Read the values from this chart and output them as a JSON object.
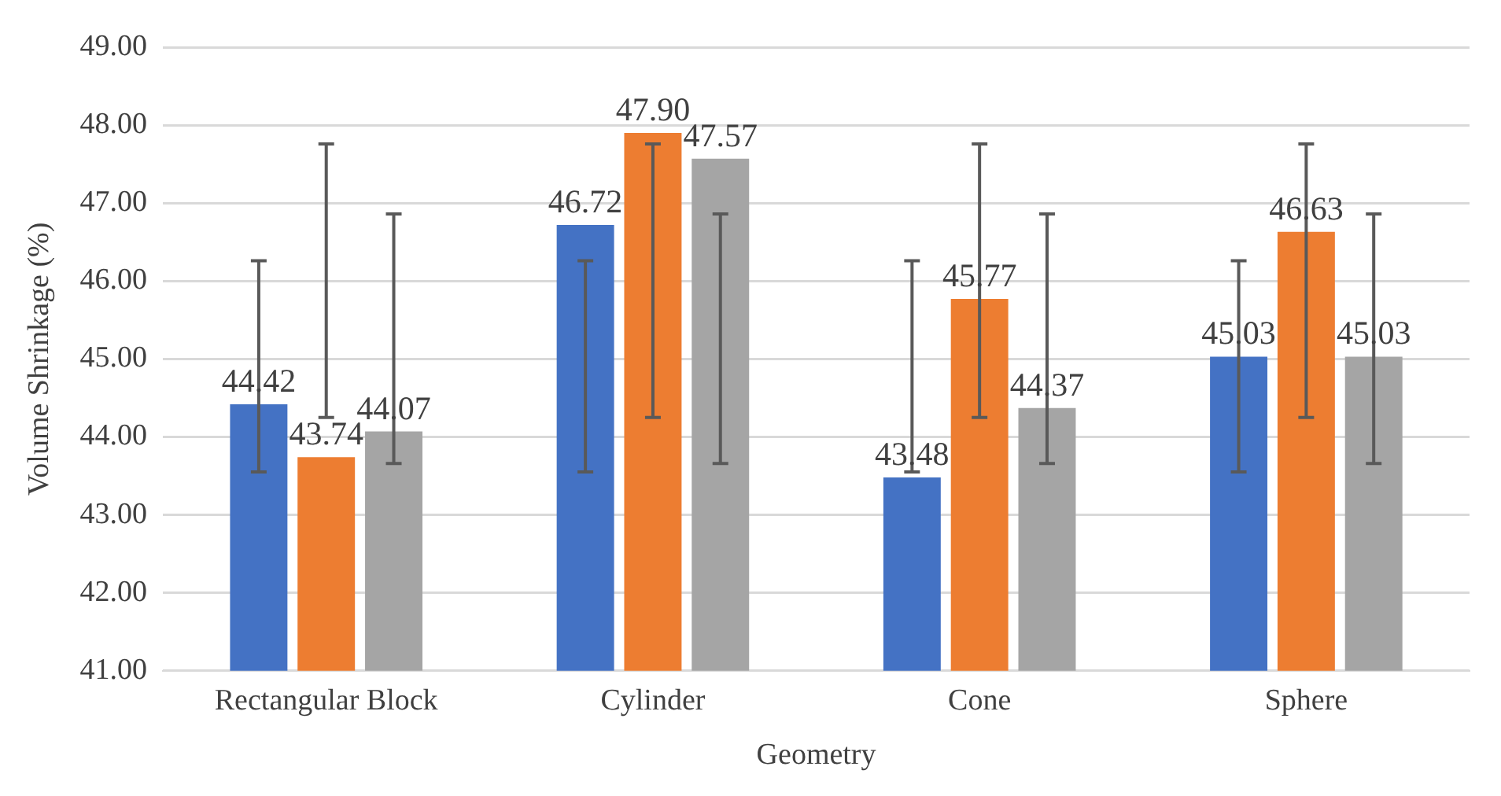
{
  "chart_data": {
    "type": "bar",
    "xlabel": "Geometry",
    "ylabel": "Volume Shrinkage (%)",
    "categories": [
      "Rectangular Block",
      "Cylinder",
      "Cone",
      "Sphere"
    ],
    "series": [
      {
        "color": "#4472c4",
        "values": [
          44.42,
          46.72,
          43.48,
          45.03
        ],
        "value_labels": [
          "44.42",
          "46.72",
          "43.48",
          "45.03"
        ],
        "errors": [
          [
            43.55,
            46.26
          ],
          [
            43.55,
            46.26
          ],
          [
            43.55,
            46.26
          ],
          [
            43.55,
            46.26
          ]
        ]
      },
      {
        "color": "#ed7d31",
        "values": [
          43.74,
          47.9,
          45.77,
          46.63
        ],
        "value_labels": [
          "43.74",
          "47.90",
          "45.77",
          "46.63"
        ],
        "errors": [
          [
            44.25,
            47.76
          ],
          [
            44.25,
            47.76
          ],
          [
            44.25,
            47.76
          ],
          [
            44.25,
            47.76
          ]
        ]
      },
      {
        "color": "#a5a5a5",
        "values": [
          44.07,
          47.57,
          44.37,
          45.03
        ],
        "value_labels": [
          "44.07",
          "47.57",
          "44.37",
          "45.03"
        ],
        "errors": [
          [
            43.66,
            46.86
          ],
          [
            43.66,
            46.86
          ],
          [
            43.66,
            46.86
          ],
          [
            43.66,
            46.86
          ]
        ]
      }
    ],
    "ylim": [
      41,
      49
    ],
    "yticks": [
      {
        "value": 41,
        "label": "41.00"
      },
      {
        "value": 42,
        "label": "42.00"
      },
      {
        "value": 43,
        "label": "43.00"
      },
      {
        "value": 44,
        "label": "44.00"
      },
      {
        "value": 45,
        "label": "45.00"
      },
      {
        "value": 46,
        "label": "46.00"
      },
      {
        "value": 47,
        "label": "47.00"
      },
      {
        "value": 48,
        "label": "48.00"
      },
      {
        "value": 49,
        "label": "49.00"
      }
    ],
    "grid": "y",
    "legend": false
  }
}
